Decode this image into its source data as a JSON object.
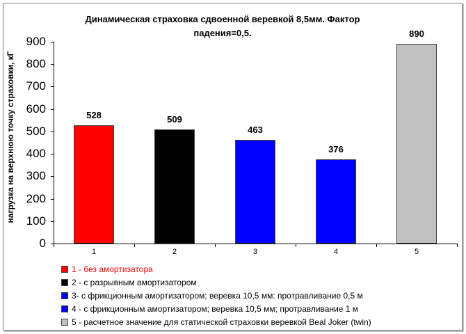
{
  "chart_data": {
    "type": "bar",
    "title": "Динамическая страховка сдвоенной веревкой 8,5мм. Фактор падения=0,5.",
    "title_lines": [
      "Динамическая страховка сдвоенной веревкой 8,5мм. Фактор",
      "падения=0,5."
    ],
    "xlabel": "",
    "ylabel": "нагрузка на верхнюю точку страховки, кГ",
    "ylim": [
      0,
      900
    ],
    "yticks": [
      "0",
      "100",
      "200",
      "300",
      "400",
      "500",
      "600",
      "700",
      "800",
      "900"
    ],
    "categories": [
      "1",
      "2",
      "3",
      "4",
      "5"
    ],
    "values": [
      528,
      509,
      463,
      376,
      890
    ],
    "value_labels": [
      "528",
      "509",
      "463",
      "376",
      "890"
    ],
    "colors": [
      "#ff0000",
      "#000000",
      "#0000ff",
      "#0000ff",
      "#c0c0c0"
    ],
    "grid": false,
    "legend_position": "bottom",
    "legend": [
      {
        "label": "1 - без амортизатора",
        "color": "#ff0000",
        "text_color": "#ff0000"
      },
      {
        "label": "2 - с разрывным амортизатором",
        "color": "#000000",
        "text_color": "#000000"
      },
      {
        "label": "3- с фрикционным амортизатором; веревка 10,5 мм: протравливание 0,5 м",
        "color": "#0000ff",
        "text_color": "#000000"
      },
      {
        "label": "4 - с фрикционным амортизатором; веревка 10,5 мм; протравливание 1 м",
        "color": "#0000ff",
        "text_color": "#000000"
      },
      {
        "label": "5 - расчетное значение для статической страховки веревкой Beal Joker (twin)",
        "color": "#c0c0c0",
        "text_color": "#000000"
      }
    ]
  }
}
